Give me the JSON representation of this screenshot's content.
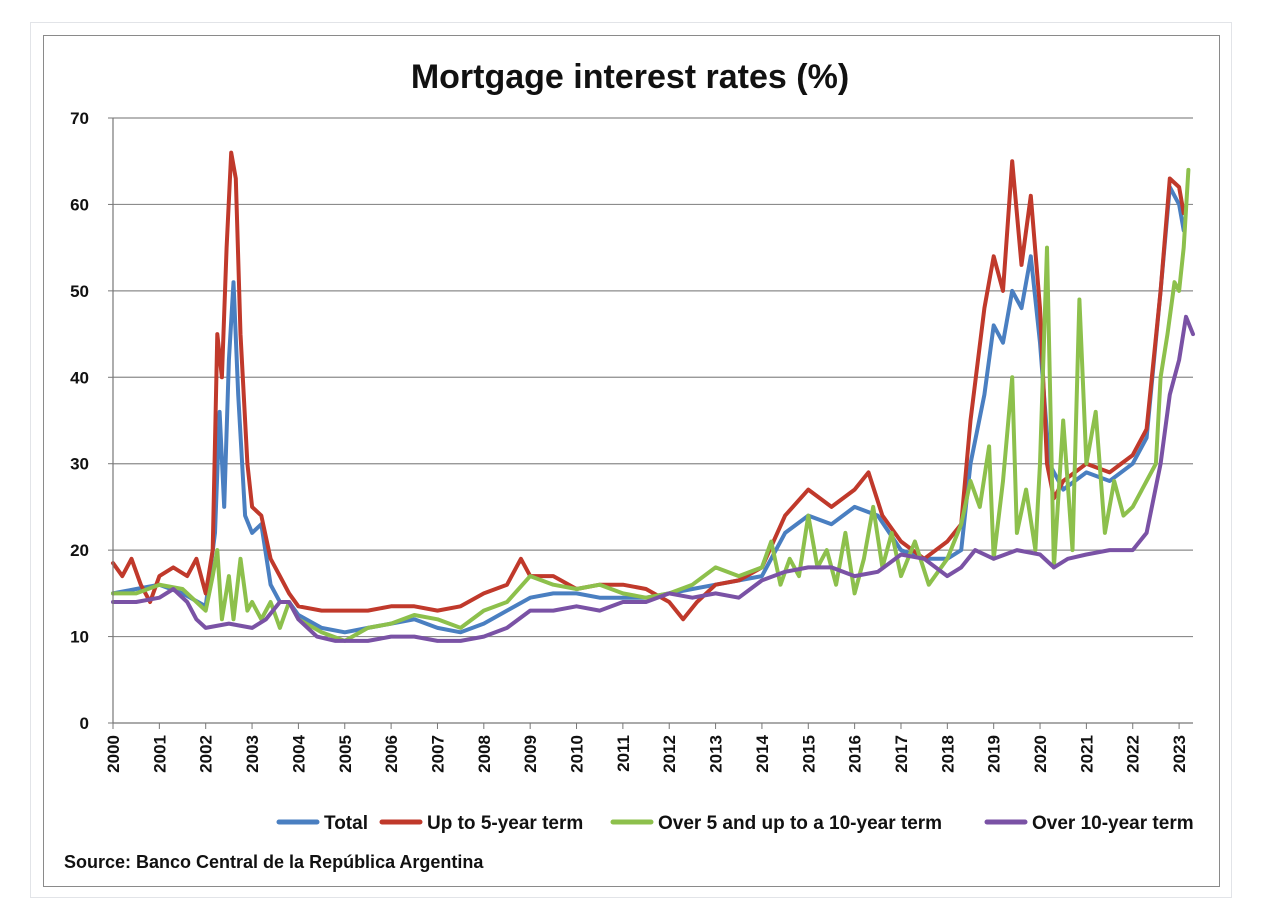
{
  "chart_data": {
    "type": "line",
    "title": "Mortgage interest rates (%)",
    "source": "Source: Banco Central de la República Argentina",
    "ylim": [
      0,
      70
    ],
    "yticks": [
      "0",
      "10",
      "20",
      "30",
      "40",
      "50",
      "60",
      "70"
    ],
    "xticks": [
      "2000",
      "2001",
      "2002",
      "2003",
      "2004",
      "2005",
      "2006",
      "2007",
      "2008",
      "2009",
      "2010",
      "2011",
      "2012",
      "2013",
      "2014",
      "2015",
      "2016",
      "2017",
      "2018",
      "2019",
      "2020",
      "2021",
      "2022",
      "2023"
    ],
    "xlim": [
      2000,
      2023.3
    ],
    "grid": true,
    "legend_position": "bottom",
    "series": [
      {
        "name": "Total",
        "color": "#4a7fc1",
        "points": [
          [
            2000,
            15
          ],
          [
            2000.5,
            15.5
          ],
          [
            2001,
            16
          ],
          [
            2001.5,
            15
          ],
          [
            2002,
            13.5
          ],
          [
            2002.2,
            22
          ],
          [
            2002.3,
            36
          ],
          [
            2002.4,
            25
          ],
          [
            2002.5,
            42
          ],
          [
            2002.6,
            51
          ],
          [
            2002.7,
            38
          ],
          [
            2002.85,
            24
          ],
          [
            2003,
            22
          ],
          [
            2003.2,
            23
          ],
          [
            2003.4,
            16
          ],
          [
            2003.6,
            14
          ],
          [
            2003.8,
            14
          ],
          [
            2004,
            12.5
          ],
          [
            2004.5,
            11
          ],
          [
            2005,
            10.5
          ],
          [
            2005.5,
            11
          ],
          [
            2006,
            11.5
          ],
          [
            2006.5,
            12
          ],
          [
            2007,
            11
          ],
          [
            2007.5,
            10.5
          ],
          [
            2008,
            11.5
          ],
          [
            2008.5,
            13
          ],
          [
            2009,
            14.5
          ],
          [
            2009.5,
            15
          ],
          [
            2010,
            15
          ],
          [
            2010.5,
            14.5
          ],
          [
            2011,
            14.5
          ],
          [
            2011.5,
            14.5
          ],
          [
            2012,
            15
          ],
          [
            2012.5,
            15.5
          ],
          [
            2013,
            16
          ],
          [
            2013.5,
            16.5
          ],
          [
            2014,
            17
          ],
          [
            2014.5,
            22
          ],
          [
            2015,
            24
          ],
          [
            2015.5,
            23
          ],
          [
            2016,
            25
          ],
          [
            2016.5,
            24
          ],
          [
            2017,
            20
          ],
          [
            2017.5,
            19
          ],
          [
            2018,
            19
          ],
          [
            2018.3,
            20
          ],
          [
            2018.5,
            30
          ],
          [
            2018.8,
            38
          ],
          [
            2019,
            46
          ],
          [
            2019.2,
            44
          ],
          [
            2019.4,
            50
          ],
          [
            2019.6,
            48
          ],
          [
            2019.8,
            54
          ],
          [
            2020,
            44
          ],
          [
            2020.2,
            30
          ],
          [
            2020.5,
            27
          ],
          [
            2021,
            29
          ],
          [
            2021.5,
            28
          ],
          [
            2022,
            30
          ],
          [
            2022.3,
            33
          ],
          [
            2022.6,
            50
          ],
          [
            2022.8,
            62
          ],
          [
            2023,
            60
          ],
          [
            2023.1,
            57
          ]
        ]
      },
      {
        "name": "Up to 5-year term",
        "color": "#c0392b",
        "points": [
          [
            2000,
            18.5
          ],
          [
            2000.2,
            17
          ],
          [
            2000.4,
            19
          ],
          [
            2000.6,
            16
          ],
          [
            2000.8,
            14
          ],
          [
            2001,
            17
          ],
          [
            2001.3,
            18
          ],
          [
            2001.6,
            17
          ],
          [
            2001.8,
            19
          ],
          [
            2002,
            15
          ],
          [
            2002.15,
            20
          ],
          [
            2002.25,
            45
          ],
          [
            2002.35,
            40
          ],
          [
            2002.45,
            55
          ],
          [
            2002.55,
            66
          ],
          [
            2002.65,
            63
          ],
          [
            2002.75,
            45
          ],
          [
            2002.9,
            30
          ],
          [
            2003,
            25
          ],
          [
            2003.2,
            24
          ],
          [
            2003.4,
            19
          ],
          [
            2003.6,
            17
          ],
          [
            2003.8,
            15
          ],
          [
            2004,
            13.5
          ],
          [
            2004.5,
            13
          ],
          [
            2005,
            13
          ],
          [
            2005.5,
            13
          ],
          [
            2006,
            13.5
          ],
          [
            2006.5,
            13.5
          ],
          [
            2007,
            13
          ],
          [
            2007.5,
            13.5
          ],
          [
            2008,
            15
          ],
          [
            2008.5,
            16
          ],
          [
            2008.8,
            19
          ],
          [
            2009,
            17
          ],
          [
            2009.5,
            17
          ],
          [
            2010,
            15.5
          ],
          [
            2010.5,
            16
          ],
          [
            2011,
            16
          ],
          [
            2011.5,
            15.5
          ],
          [
            2012,
            14
          ],
          [
            2012.3,
            12
          ],
          [
            2012.6,
            14
          ],
          [
            2013,
            16
          ],
          [
            2013.5,
            16.5
          ],
          [
            2014,
            18
          ],
          [
            2014.5,
            24
          ],
          [
            2015,
            27
          ],
          [
            2015.5,
            25
          ],
          [
            2016,
            27
          ],
          [
            2016.3,
            29
          ],
          [
            2016.6,
            24
          ],
          [
            2017,
            21
          ],
          [
            2017.5,
            19
          ],
          [
            2018,
            21
          ],
          [
            2018.3,
            23
          ],
          [
            2018.5,
            35
          ],
          [
            2018.8,
            48
          ],
          [
            2019,
            54
          ],
          [
            2019.2,
            50
          ],
          [
            2019.4,
            65
          ],
          [
            2019.6,
            53
          ],
          [
            2019.8,
            61
          ],
          [
            2020,
            48
          ],
          [
            2020.15,
            30
          ],
          [
            2020.3,
            26
          ],
          [
            2020.5,
            28
          ],
          [
            2021,
            30
          ],
          [
            2021.5,
            29
          ],
          [
            2022,
            31
          ],
          [
            2022.3,
            34
          ],
          [
            2022.6,
            50
          ],
          [
            2022.8,
            63
          ],
          [
            2023,
            62
          ],
          [
            2023.1,
            59
          ]
        ]
      },
      {
        "name": "Over 5 and up to a 10-year term",
        "color": "#8dc04c",
        "points": [
          [
            2000,
            15
          ],
          [
            2000.5,
            15
          ],
          [
            2001,
            16
          ],
          [
            2001.5,
            15.5
          ],
          [
            2002,
            13
          ],
          [
            2002.15,
            17
          ],
          [
            2002.25,
            20
          ],
          [
            2002.35,
            12
          ],
          [
            2002.5,
            17
          ],
          [
            2002.6,
            12
          ],
          [
            2002.75,
            19
          ],
          [
            2002.9,
            13
          ],
          [
            2003,
            14
          ],
          [
            2003.2,
            12
          ],
          [
            2003.4,
            14
          ],
          [
            2003.6,
            11
          ],
          [
            2003.8,
            14
          ],
          [
            2004,
            12
          ],
          [
            2004.5,
            10.5
          ],
          [
            2005,
            9.5
          ],
          [
            2005.5,
            11
          ],
          [
            2006,
            11.5
          ],
          [
            2006.5,
            12.5
          ],
          [
            2007,
            12
          ],
          [
            2007.5,
            11
          ],
          [
            2008,
            13
          ],
          [
            2008.5,
            14
          ],
          [
            2009,
            17
          ],
          [
            2009.5,
            16
          ],
          [
            2010,
            15.5
          ],
          [
            2010.5,
            16
          ],
          [
            2011,
            15
          ],
          [
            2011.5,
            14.5
          ],
          [
            2012,
            15
          ],
          [
            2012.5,
            16
          ],
          [
            2013,
            18
          ],
          [
            2013.5,
            17
          ],
          [
            2014,
            18
          ],
          [
            2014.2,
            21
          ],
          [
            2014.4,
            16
          ],
          [
            2014.6,
            19
          ],
          [
            2014.8,
            17
          ],
          [
            2015,
            24
          ],
          [
            2015.2,
            18
          ],
          [
            2015.4,
            20
          ],
          [
            2015.6,
            16
          ],
          [
            2015.8,
            22
          ],
          [
            2016,
            15
          ],
          [
            2016.2,
            19
          ],
          [
            2016.4,
            25
          ],
          [
            2016.6,
            18
          ],
          [
            2016.8,
            22
          ],
          [
            2017,
            17
          ],
          [
            2017.3,
            21
          ],
          [
            2017.6,
            16
          ],
          [
            2018,
            19
          ],
          [
            2018.3,
            23
          ],
          [
            2018.5,
            28
          ],
          [
            2018.7,
            25
          ],
          [
            2018.9,
            32
          ],
          [
            2019,
            19
          ],
          [
            2019.2,
            28
          ],
          [
            2019.4,
            40
          ],
          [
            2019.5,
            22
          ],
          [
            2019.7,
            27
          ],
          [
            2019.9,
            20
          ],
          [
            2020,
            30
          ],
          [
            2020.15,
            55
          ],
          [
            2020.3,
            18
          ],
          [
            2020.5,
            35
          ],
          [
            2020.7,
            20
          ],
          [
            2020.85,
            49
          ],
          [
            2021,
            30
          ],
          [
            2021.2,
            36
          ],
          [
            2021.4,
            22
          ],
          [
            2021.6,
            28
          ],
          [
            2021.8,
            24
          ],
          [
            2022,
            25
          ],
          [
            2022.3,
            28
          ],
          [
            2022.5,
            30
          ],
          [
            2022.6,
            40
          ],
          [
            2022.75,
            45
          ],
          [
            2022.9,
            51
          ],
          [
            2023,
            50
          ],
          [
            2023.1,
            55
          ],
          [
            2023.2,
            64
          ]
        ]
      },
      {
        "name": "Over 10-year term",
        "color": "#7a52a5",
        "points": [
          [
            2000,
            14
          ],
          [
            2000.5,
            14
          ],
          [
            2001,
            14.5
          ],
          [
            2001.3,
            15.5
          ],
          [
            2001.6,
            14
          ],
          [
            2001.8,
            12
          ],
          [
            2002,
            11
          ],
          [
            2002.5,
            11.5
          ],
          [
            2003,
            11
          ],
          [
            2003.3,
            12
          ],
          [
            2003.6,
            14
          ],
          [
            2003.8,
            14
          ],
          [
            2004,
            12
          ],
          [
            2004.4,
            10
          ],
          [
            2004.8,
            9.5
          ],
          [
            2005,
            9.5
          ],
          [
            2005.5,
            9.5
          ],
          [
            2006,
            10
          ],
          [
            2006.5,
            10
          ],
          [
            2007,
            9.5
          ],
          [
            2007.5,
            9.5
          ],
          [
            2008,
            10
          ],
          [
            2008.5,
            11
          ],
          [
            2009,
            13
          ],
          [
            2009.5,
            13
          ],
          [
            2010,
            13.5
          ],
          [
            2010.5,
            13
          ],
          [
            2011,
            14
          ],
          [
            2011.5,
            14
          ],
          [
            2012,
            15
          ],
          [
            2012.5,
            14.5
          ],
          [
            2013,
            15
          ],
          [
            2013.5,
            14.5
          ],
          [
            2014,
            16.5
          ],
          [
            2014.5,
            17.5
          ],
          [
            2015,
            18
          ],
          [
            2015.5,
            18
          ],
          [
            2016,
            17
          ],
          [
            2016.5,
            17.5
          ],
          [
            2017,
            19.5
          ],
          [
            2017.5,
            19
          ],
          [
            2018,
            17
          ],
          [
            2018.3,
            18
          ],
          [
            2018.6,
            20
          ],
          [
            2019,
            19
          ],
          [
            2019.5,
            20
          ],
          [
            2020,
            19.5
          ],
          [
            2020.3,
            18
          ],
          [
            2020.6,
            19
          ],
          [
            2021,
            19.5
          ],
          [
            2021.5,
            20
          ],
          [
            2022,
            20
          ],
          [
            2022.3,
            22
          ],
          [
            2022.6,
            30
          ],
          [
            2022.8,
            38
          ],
          [
            2023,
            42
          ],
          [
            2023.15,
            47
          ],
          [
            2023.3,
            45
          ]
        ]
      }
    ]
  }
}
